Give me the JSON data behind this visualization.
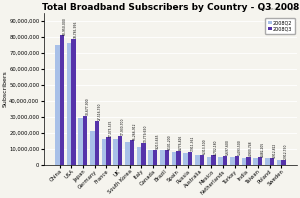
{
  "title": "Total Broadband Subscribers by Country - Q3 2008",
  "source": "Source: Point Topic",
  "ylabel": "Subscribers",
  "categories": [
    "China",
    "USA",
    "Japan",
    "Germany",
    "France",
    "UK",
    "South Korea",
    "Italy",
    "Canada",
    "Brazil",
    "Spain",
    "Russia",
    "Australia",
    "Mexico",
    "Netherlands",
    "Turkey",
    "India",
    "Taiwan",
    "Poland",
    "Sweden"
  ],
  "q2_values": [
    75000000,
    76000000,
    29000000,
    21000000,
    16000000,
    16000000,
    14000000,
    11000000,
    9000000,
    9000000,
    8000000,
    7000000,
    6000000,
    5000000,
    5000000,
    5000000,
    4000000,
    4000000,
    4000000,
    3000000
  ],
  "q3_values": [
    80950000,
    78785996,
    30677900,
    27516750,
    17075535,
    17930700,
    15266912,
    13779650,
    9213665,
    9101200,
    8776816,
    7911361,
    6313500,
    5702180,
    5697600,
    5493500,
    4900748,
    4482205,
    3912822,
    2912750
  ],
  "q3_labels": [
    "80,950,000",
    "78,785,996",
    "30,677,900",
    "27,516,750",
    "17,075,535",
    "17,930,700",
    "15,266,912",
    "13,779,650",
    "9,213,665",
    "9,101,200",
    "8,776,816",
    "7,911,361",
    "6,313,500",
    "5,702,180",
    "5,697,600",
    "5,493,500",
    "4,900,748",
    "4,482,205",
    "3,912,822",
    "2,912,750"
  ],
  "color_q2": "#A8C0E8",
  "color_q3": "#5533AA",
  "bg_color": "#F5F4EE",
  "plot_bg": "#F5F4EE",
  "grid_color": "#FFFFFF",
  "ylim": [
    0,
    95000000
  ],
  "bar_width": 0.38,
  "legend_labels": [
    "2008Q2",
    "2008Q3"
  ],
  "title_fontsize": 6.5,
  "value_label_fontsize": 2.2,
  "tick_fontsize": 3.8,
  "ylabel_fontsize": 4.5,
  "legend_fontsize": 3.5,
  "source_fontsize": 2.8
}
